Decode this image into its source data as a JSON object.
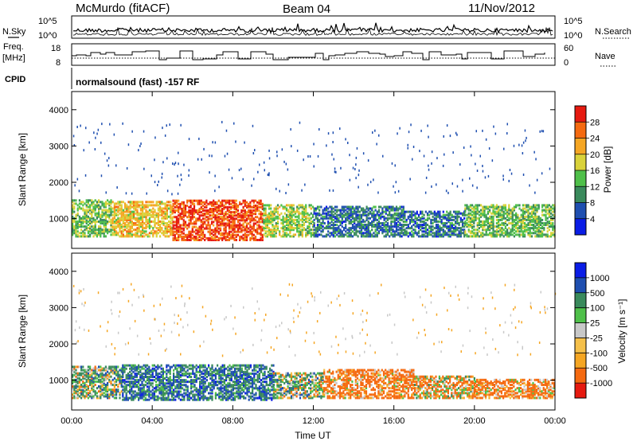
{
  "header": {
    "station": "McMurdo (fitACF)",
    "beam": "Beam 04",
    "date": "11/Nov/2012"
  },
  "strips": {
    "nsky_label": "N.Sky",
    "nsearch_label": "N.Search",
    "noise_ticks": [
      "10^5",
      "10^0"
    ],
    "freq_label_1": "Freq.",
    "freq_label_2": "[MHz]",
    "freq_ticks": [
      "18",
      "8"
    ],
    "nave_label": "Nave",
    "nave_ticks": [
      "60",
      "0"
    ],
    "cpid_label": "CPID",
    "cpid_text": "normalsound (fast) -157 RF"
  },
  "colors": {
    "power_scale": [
      "#0a1de6",
      "#1f4fb0",
      "#3a8a5c",
      "#4fc04a",
      "#d9d23a",
      "#f5a623",
      "#f56a10",
      "#e61a10"
    ],
    "velocity_scale": [
      "#e61a10",
      "#f56a10",
      "#f5a623",
      "#f5c04a",
      "#c8c8c8",
      "#4fc04a",
      "#3a8a5c",
      "#1f4fb0",
      "#0a1de6"
    ]
  },
  "chart_data": [
    {
      "type": "heatmap",
      "panel": "power",
      "ylabel": "Slant Range [km]",
      "xlabel": "",
      "xlim": [
        "00:00",
        "24:00"
      ],
      "ylim": [
        180,
        4500
      ],
      "x_ticks": [
        "00:00",
        "04:00",
        "08:00",
        "12:00",
        "16:00",
        "20:00",
        "00:00"
      ],
      "y_ticks": [
        1000,
        2000,
        3000,
        4000
      ],
      "colorbar_label": "Power [dB]",
      "colorbar_ticks": [
        4,
        8,
        12,
        16,
        20,
        24,
        28
      ],
      "scatter_bands": [
        {
          "t_start_h": 0.0,
          "t_end_h": 2.0,
          "range_min_km": 500,
          "range_max_km": 1500,
          "value_db": 14
        },
        {
          "t_start_h": 2.0,
          "t_end_h": 5.0,
          "range_min_km": 500,
          "range_max_km": 1450,
          "value_db": 20
        },
        {
          "t_start_h": 5.0,
          "t_end_h": 9.5,
          "range_min_km": 400,
          "range_max_km": 1500,
          "value_db": 28
        },
        {
          "t_start_h": 9.5,
          "t_end_h": 12.0,
          "range_min_km": 500,
          "range_max_km": 1400,
          "value_db": 16
        },
        {
          "t_start_h": 12.0,
          "t_end_h": 16.5,
          "range_min_km": 500,
          "range_max_km": 1350,
          "value_db": 8
        },
        {
          "t_start_h": 16.5,
          "t_end_h": 19.5,
          "range_min_km": 500,
          "range_max_km": 1200,
          "value_db": 8
        },
        {
          "t_start_h": 19.5,
          "t_end_h": 24.0,
          "range_min_km": 500,
          "range_max_km": 1400,
          "value_db": 14
        }
      ]
    },
    {
      "type": "heatmap",
      "panel": "velocity",
      "ylabel": "Slant Range [km]",
      "xlabel": "Time UT",
      "xlim": [
        "00:00",
        "24:00"
      ],
      "ylim": [
        180,
        4500
      ],
      "x_ticks": [
        "00:00",
        "04:00",
        "08:00",
        "12:00",
        "16:00",
        "20:00",
        "00:00"
      ],
      "y_ticks": [
        1000,
        2000,
        3000,
        4000
      ],
      "colorbar_label": "Velocity [m s⁻¹]",
      "colorbar_ticks": [
        1000,
        500,
        100,
        25,
        -25,
        -100,
        -500,
        -1000
      ],
      "scatter_bands": [
        {
          "t_start_h": 0.0,
          "t_end_h": 2.5,
          "range_min_km": 500,
          "range_max_km": 1400,
          "value_ms": 100
        },
        {
          "t_start_h": 2.5,
          "t_end_h": 10.0,
          "range_min_km": 450,
          "range_max_km": 1400,
          "value_ms": 300
        },
        {
          "t_start_h": 10.0,
          "t_end_h": 12.5,
          "range_min_km": 500,
          "range_max_km": 1200,
          "value_ms": 100
        },
        {
          "t_start_h": 12.5,
          "t_end_h": 17.0,
          "range_min_km": 500,
          "range_max_km": 1300,
          "value_ms": -200
        },
        {
          "t_start_h": 17.0,
          "t_end_h": 20.0,
          "range_min_km": 500,
          "range_max_km": 1100,
          "value_ms": -100
        },
        {
          "t_start_h": 20.0,
          "t_end_h": 24.0,
          "range_min_km": 500,
          "range_max_km": 1000,
          "value_ms": -200
        }
      ]
    }
  ]
}
